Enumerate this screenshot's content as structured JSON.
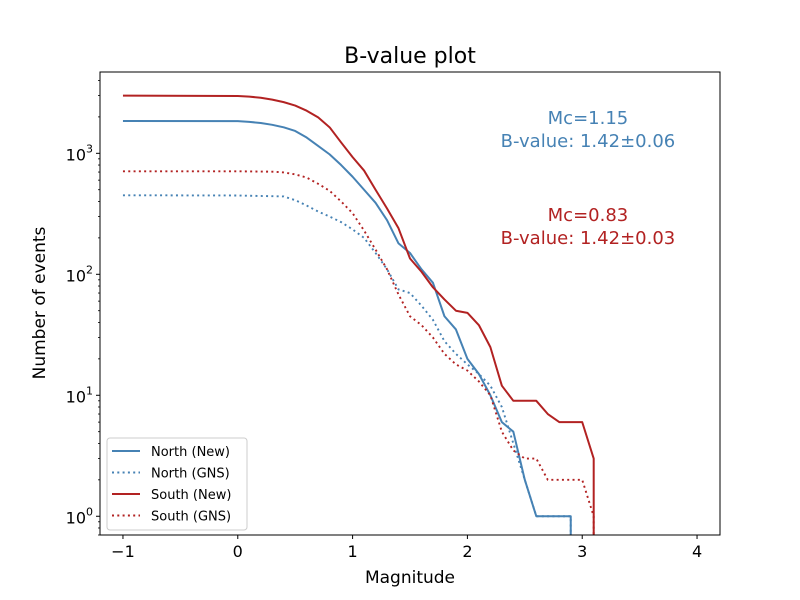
{
  "chart_data": {
    "type": "line",
    "title": "B-value plot",
    "xlabel": "Magnitude",
    "ylabel": "Number of events",
    "xlim": [
      -1.2,
      4.2
    ],
    "ylim": [
      0.7,
      4700
    ],
    "yscale": "log",
    "grid": false,
    "legend_position": "lower-left",
    "x_ticks": [
      -1,
      0,
      1,
      2,
      3,
      4
    ],
    "x_tick_labels": [
      "−1",
      "0",
      "1",
      "2",
      "3",
      "4"
    ],
    "y_ticks": [
      1,
      10,
      100,
      1000
    ],
    "y_tick_base": "10",
    "y_tick_exponents": [
      "0",
      "1",
      "2",
      "3"
    ],
    "annotations": [
      {
        "lines": [
          "Mc=1.15",
          "B-value: 1.42±0.06"
        ],
        "color": "#4682b4",
        "x": 3.05,
        "y_top": 1750.0
      },
      {
        "lines": [
          "Mc=0.83",
          "B-value: 1.42±0.03"
        ],
        "color": "#b22222",
        "x": 3.05,
        "y_top": 275.0
      }
    ],
    "series": [
      {
        "name": "North (New)",
        "color": "#4682b4",
        "style": "solid",
        "points": [
          [
            -1,
            1850
          ],
          [
            0,
            1845
          ],
          [
            0.1,
            1820
          ],
          [
            0.2,
            1780
          ],
          [
            0.3,
            1720
          ],
          [
            0.4,
            1640
          ],
          [
            0.5,
            1530
          ],
          [
            0.6,
            1350
          ],
          [
            0.7,
            1150
          ],
          [
            0.8,
            980
          ],
          [
            0.9,
            800
          ],
          [
            1.0,
            640
          ],
          [
            1.1,
            500
          ],
          [
            1.2,
            390
          ],
          [
            1.3,
            280
          ],
          [
            1.4,
            180
          ],
          [
            1.5,
            150
          ],
          [
            1.6,
            110
          ],
          [
            1.7,
            85
          ],
          [
            1.8,
            45
          ],
          [
            1.9,
            35
          ],
          [
            2.0,
            20
          ],
          [
            2.1,
            15
          ],
          [
            2.2,
            10
          ],
          [
            2.3,
            6
          ],
          [
            2.4,
            5
          ],
          [
            2.5,
            2
          ],
          [
            2.6,
            1
          ],
          [
            2.9,
            1
          ],
          [
            2.9,
            0.7
          ]
        ]
      },
      {
        "name": "North (GNS)",
        "color": "#4682b4",
        "style": "dotted",
        "points": [
          [
            -1,
            450
          ],
          [
            0,
            448
          ],
          [
            0.4,
            440
          ],
          [
            0.5,
            410
          ],
          [
            0.6,
            370
          ],
          [
            0.7,
            330
          ],
          [
            0.8,
            300
          ],
          [
            0.9,
            270
          ],
          [
            1.0,
            235
          ],
          [
            1.1,
            200
          ],
          [
            1.2,
            150
          ],
          [
            1.3,
            110
          ],
          [
            1.4,
            75
          ],
          [
            1.5,
            70
          ],
          [
            1.6,
            55
          ],
          [
            1.7,
            42
          ],
          [
            1.8,
            28
          ],
          [
            1.9,
            22
          ],
          [
            2.0,
            18
          ],
          [
            2.1,
            15
          ],
          [
            2.2,
            12
          ],
          [
            2.3,
            8
          ],
          [
            2.4,
            4
          ],
          [
            2.5,
            2
          ],
          [
            2.6,
            1
          ],
          [
            2.9,
            1
          ],
          [
            2.9,
            0.7
          ]
        ]
      },
      {
        "name": "South (New)",
        "color": "#b22222",
        "style": "solid",
        "points": [
          [
            -1,
            3000
          ],
          [
            0,
            2980
          ],
          [
            0.1,
            2940
          ],
          [
            0.2,
            2880
          ],
          [
            0.3,
            2780
          ],
          [
            0.4,
            2650
          ],
          [
            0.5,
            2480
          ],
          [
            0.6,
            2250
          ],
          [
            0.7,
            1980
          ],
          [
            0.8,
            1640
          ],
          [
            0.9,
            1230
          ],
          [
            1.0,
            930
          ],
          [
            1.1,
            720
          ],
          [
            1.2,
            500
          ],
          [
            1.3,
            350
          ],
          [
            1.4,
            240
          ],
          [
            1.5,
            135
          ],
          [
            1.6,
            105
          ],
          [
            1.7,
            78
          ],
          [
            1.8,
            62
          ],
          [
            1.9,
            50
          ],
          [
            2.0,
            48
          ],
          [
            2.1,
            38
          ],
          [
            2.2,
            25
          ],
          [
            2.3,
            12
          ],
          [
            2.4,
            9
          ],
          [
            2.5,
            9
          ],
          [
            2.6,
            9
          ],
          [
            2.7,
            7
          ],
          [
            2.8,
            6
          ],
          [
            2.9,
            6
          ],
          [
            3.0,
            6
          ],
          [
            3.1,
            3
          ],
          [
            3.1,
            0.7
          ]
        ]
      },
      {
        "name": "South (GNS)",
        "color": "#b22222",
        "style": "dotted",
        "points": [
          [
            -1,
            710
          ],
          [
            0,
            710
          ],
          [
            0.3,
            705
          ],
          [
            0.4,
            695
          ],
          [
            0.5,
            670
          ],
          [
            0.6,
            630
          ],
          [
            0.7,
            560
          ],
          [
            0.8,
            490
          ],
          [
            0.9,
            400
          ],
          [
            1.0,
            320
          ],
          [
            1.1,
            230
          ],
          [
            1.2,
            160
          ],
          [
            1.3,
            110
          ],
          [
            1.4,
            68
          ],
          [
            1.5,
            45
          ],
          [
            1.6,
            38
          ],
          [
            1.7,
            30
          ],
          [
            1.8,
            22
          ],
          [
            1.9,
            18
          ],
          [
            2.0,
            16
          ],
          [
            2.1,
            13
          ],
          [
            2.2,
            10
          ],
          [
            2.3,
            5
          ],
          [
            2.4,
            3.5
          ],
          [
            2.5,
            3
          ],
          [
            2.6,
            3
          ],
          [
            2.7,
            2
          ],
          [
            2.8,
            2
          ],
          [
            2.9,
            2
          ],
          [
            3.0,
            2
          ],
          [
            3.1,
            1
          ],
          [
            3.1,
            0.7
          ]
        ]
      }
    ]
  }
}
